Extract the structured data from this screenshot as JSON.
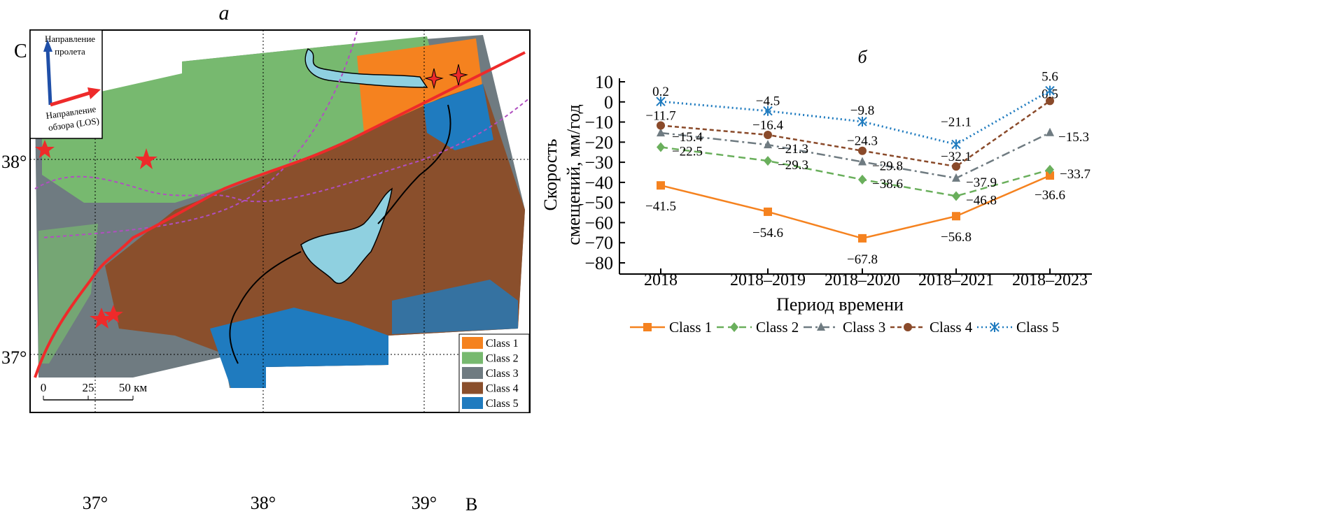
{
  "map_panel": {
    "panel_label": "a",
    "north_label": "С",
    "east_label": "В",
    "inset": {
      "flight_direction": [
        "Направление",
        "пролета"
      ],
      "look_direction": [
        "Направление",
        "обзора (LOS)"
      ]
    },
    "lat_labels": [
      "38°",
      "37°"
    ],
    "lon_labels": [
      "37°",
      "38°",
      "39°"
    ],
    "scale_bar": {
      "labels": [
        "0",
        "25",
        "50 км"
      ]
    },
    "legend": [
      {
        "label": "Class 1",
        "color": "#f5821f"
      },
      {
        "label": "Class 2",
        "color": "#77b96f"
      },
      {
        "label": "Class 3",
        "color": "#6f7b81"
      },
      {
        "label": "Class 4",
        "color": "#8a4f2c"
      },
      {
        "label": "Class 5",
        "color": "#1f7bbf"
      }
    ],
    "colors": {
      "water": "#8fd0e0",
      "fault": "#ee2a2a",
      "boundary": "#b04fc0",
      "flight_arrow": "#1f4fa8"
    }
  },
  "chart_data": {
    "type": "line",
    "title": "б",
    "xlabel": "Период времени",
    "ylabel": [
      "Скорость",
      "смещений, мм/год"
    ],
    "categories": [
      "2018",
      "2018–2019",
      "2018–2020",
      "2018–2021",
      "2018–2023"
    ],
    "ylim": [
      -80,
      10
    ],
    "yticks": [
      10,
      0,
      -10,
      -20,
      -30,
      -40,
      -50,
      -60,
      -70,
      -80
    ],
    "ytick_labels": [
      "10",
      "0",
      "−10",
      "−20",
      "−30",
      "−40",
      "−50",
      "−60",
      "−70",
      "−80"
    ],
    "legend_position": "bottom",
    "grid": false,
    "series": [
      {
        "name": "Class 1",
        "color": "#f5821f",
        "marker": "square",
        "dash": "solid",
        "values": [
          -41.5,
          -54.6,
          -67.8,
          -56.8,
          -36.6
        ],
        "labels": [
          "−41.5",
          "−54.6",
          "−67.8",
          "−56.8",
          "−36.6"
        ]
      },
      {
        "name": "Class 2",
        "color": "#6aaf5c",
        "marker": "diamond",
        "dash": "dashed",
        "values": [
          -22.5,
          -29.3,
          -38.6,
          -46.8,
          -33.7
        ],
        "labels": [
          "−22.5",
          "−29.3",
          "−38.6",
          "−46.8",
          "−33.7"
        ]
      },
      {
        "name": "Class 3",
        "color": "#6f7b81",
        "marker": "triangle",
        "dash": "dashdot",
        "values": [
          -15.4,
          -21.3,
          -29.8,
          -37.9,
          -15.3
        ],
        "labels": [
          "−15.4",
          "−21.3",
          "−29.8",
          "−37.9",
          "−15.3"
        ]
      },
      {
        "name": "Class 4",
        "color": "#8a4a2a",
        "marker": "circle",
        "dash": "shortdash",
        "values": [
          -11.7,
          -16.4,
          -24.3,
          -32.1,
          0.5
        ],
        "labels": [
          "−11.7",
          "−16.4",
          "−24.3",
          "−32.1",
          "0.5"
        ]
      },
      {
        "name": "Class 5",
        "color": "#1f7bbf",
        "marker": "asterisk",
        "dash": "dotted",
        "values": [
          0.2,
          -4.5,
          -9.8,
          -21.1,
          5.6
        ],
        "labels": [
          "0.2",
          "−4.5",
          "−9.8",
          "−21.1",
          "5.6"
        ]
      }
    ]
  }
}
